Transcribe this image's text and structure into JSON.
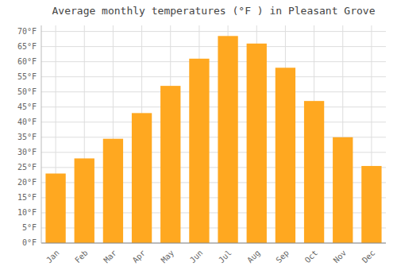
{
  "chart_data": {
    "type": "bar",
    "title": "Average monthly temperatures (°F ) in Pleasant Grove",
    "categories": [
      "Jan",
      "Feb",
      "Mar",
      "Apr",
      "May",
      "Jun",
      "Jul",
      "Aug",
      "Sep",
      "Oct",
      "Nov",
      "Dec"
    ],
    "values": [
      23,
      28,
      34.5,
      43,
      52,
      61,
      68.5,
      66,
      58,
      47,
      35,
      25.5
    ],
    "color": "#FFA820",
    "ylim": [
      0,
      72
    ],
    "yticks": [
      {
        "value": 0,
        "label": "0°F"
      },
      {
        "value": 5,
        "label": "5°F"
      },
      {
        "value": 10,
        "label": "10°F"
      },
      {
        "value": 15,
        "label": "15°F"
      },
      {
        "value": 20,
        "label": "20°F"
      },
      {
        "value": 25,
        "label": "25°F"
      },
      {
        "value": 30,
        "label": "30°F"
      },
      {
        "value": 35,
        "label": "35°F"
      },
      {
        "value": 40,
        "label": "40°F"
      },
      {
        "value": 45,
        "label": "45°F"
      },
      {
        "value": 50,
        "label": "50°F"
      },
      {
        "value": 55,
        "label": "55°F"
      },
      {
        "value": 60,
        "label": "60°F"
      },
      {
        "value": 65,
        "label": "65°F"
      },
      {
        "value": 70,
        "label": "70°F"
      }
    ],
    "grid": true
  }
}
